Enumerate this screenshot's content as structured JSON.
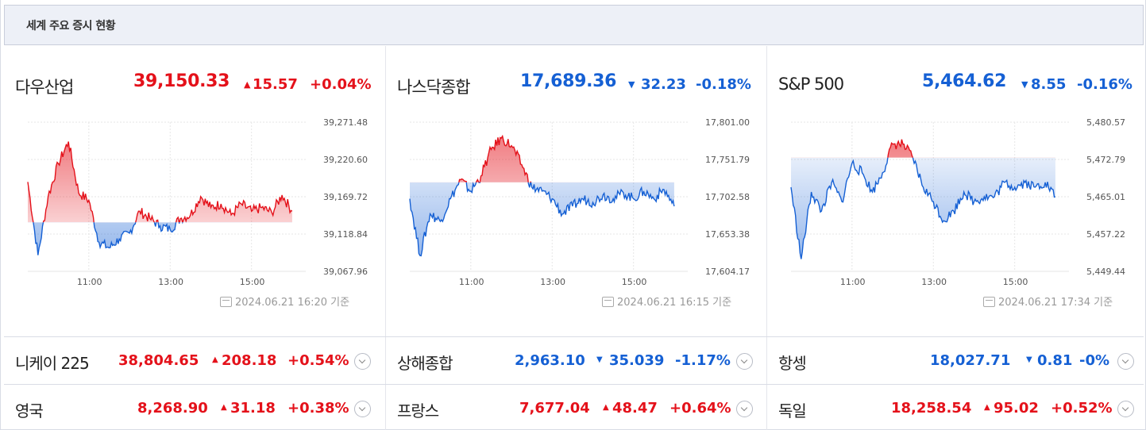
{
  "header": {
    "title": "세계 주요 증시 현황"
  },
  "panels": [
    {
      "name": "다우산업",
      "value": "39,150.33",
      "direction": "up",
      "arrow": "▲",
      "change": "15.57",
      "percent": "+0.04%",
      "timestamp": "2024.06.21 16:20 기준",
      "chart_data": {
        "type": "area",
        "yticks": [
          "39,271.48",
          "39,220.60",
          "39,169.72",
          "39,118.84",
          "39,067.96"
        ],
        "xticks": [
          "11:00",
          "13:00",
          "15:00"
        ],
        "ylim": [
          39067.96,
          39271.48
        ],
        "baseline": 39134.76,
        "x": [
          "09:30",
          "09:45",
          "10:00",
          "10:15",
          "10:30",
          "10:45",
          "11:00",
          "11:15",
          "11:30",
          "11:45",
          "12:00",
          "12:15",
          "12:30",
          "12:45",
          "13:00",
          "13:15",
          "13:30",
          "13:45",
          "14:00",
          "14:15",
          "14:30",
          "14:45",
          "15:00",
          "15:15",
          "15:30",
          "15:45",
          "16:00"
        ],
        "values": [
          39190,
          39090,
          39170,
          39215,
          39245,
          39175,
          39165,
          39108,
          39100,
          39112,
          39120,
          39150,
          39140,
          39130,
          39125,
          39140,
          39145,
          39170,
          39155,
          39160,
          39145,
          39160,
          39150,
          39155,
          39148,
          39172,
          39150
        ]
      }
    },
    {
      "name": "나스닥종합",
      "value": "17,689.36",
      "direction": "down",
      "arrow": "▼",
      "change": "32.23",
      "percent": "-0.18%",
      "timestamp": "2024.06.21 16:15 기준",
      "chart_data": {
        "type": "area",
        "yticks": [
          "17,801.00",
          "17,751.79",
          "17,702.58",
          "17,653.38",
          "17,604.17"
        ],
        "xticks": [
          "11:00",
          "13:00",
          "15:00"
        ],
        "ylim": [
          17604.17,
          17801.0
        ],
        "baseline": 17721.6,
        "x": [
          "09:30",
          "09:45",
          "10:00",
          "10:15",
          "10:30",
          "10:45",
          "11:00",
          "11:15",
          "11:30",
          "11:45",
          "12:00",
          "12:15",
          "12:30",
          "12:45",
          "13:00",
          "13:15",
          "13:30",
          "13:45",
          "14:00",
          "14:15",
          "14:30",
          "14:45",
          "15:00",
          "15:15",
          "15:30",
          "15:45",
          "16:00"
        ],
        "values": [
          17700,
          17625,
          17680,
          17670,
          17700,
          17725,
          17710,
          17730,
          17765,
          17780,
          17770,
          17745,
          17715,
          17710,
          17700,
          17680,
          17690,
          17700,
          17695,
          17705,
          17700,
          17708,
          17700,
          17710,
          17700,
          17712,
          17690
        ]
      }
    },
    {
      "name": "S&P 500",
      "value": "5,464.62",
      "direction": "down",
      "arrow": "▼",
      "change": "8.55",
      "percent": "-0.16%",
      "timestamp": "2024.06.21 17:34 기준",
      "chart_data": {
        "type": "area",
        "yticks": [
          "5,480.57",
          "5,472.79",
          "5,465.01",
          "5,457.22",
          "5,449.44"
        ],
        "xticks": [
          "11:00",
          "13:00",
          "15:00"
        ],
        "ylim": [
          5449.44,
          5480.57
        ],
        "baseline": 5473.17,
        "x": [
          "09:30",
          "09:45",
          "10:00",
          "10:15",
          "10:30",
          "10:45",
          "11:00",
          "11:15",
          "11:30",
          "11:45",
          "12:00",
          "12:15",
          "12:30",
          "12:45",
          "13:00",
          "13:15",
          "13:30",
          "13:45",
          "14:00",
          "14:15",
          "14:30",
          "14:45",
          "15:00",
          "15:15",
          "15:30",
          "15:45",
          "16:00"
        ],
        "values": [
          5467,
          5452,
          5466,
          5462,
          5468,
          5464,
          5472,
          5470,
          5466,
          5470,
          5476,
          5476,
          5473,
          5467,
          5464,
          5460,
          5462,
          5466,
          5464,
          5465,
          5465,
          5468,
          5467,
          5468,
          5467,
          5468,
          5465
        ]
      }
    }
  ],
  "rows": [
    [
      {
        "name": "니케이 225",
        "value": "38,804.65",
        "direction": "up",
        "arrow": "▲",
        "change": "208.18",
        "percent": "+0.54%"
      },
      {
        "name": "상해종합",
        "value": "2,963.10",
        "direction": "down",
        "arrow": "▼",
        "change": "35.039",
        "percent": "-1.17%"
      },
      {
        "name": "항셍",
        "value": "18,027.71",
        "direction": "down",
        "arrow": "▼",
        "change": "0.81",
        "percent": "-0%"
      }
    ],
    [
      {
        "name": "영국",
        "value": "8,268.90",
        "direction": "up",
        "arrow": "▲",
        "change": "31.18",
        "percent": "+0.38%"
      },
      {
        "name": "프랑스",
        "value": "7,677.04",
        "direction": "up",
        "arrow": "▲",
        "change": "48.47",
        "percent": "+0.64%"
      },
      {
        "name": "독일",
        "value": "18,258.54",
        "direction": "up",
        "arrow": "▲",
        "change": "95.02",
        "percent": "+0.52%"
      }
    ]
  ],
  "colors": {
    "up": "#e4111a",
    "down": "#1560d4"
  }
}
